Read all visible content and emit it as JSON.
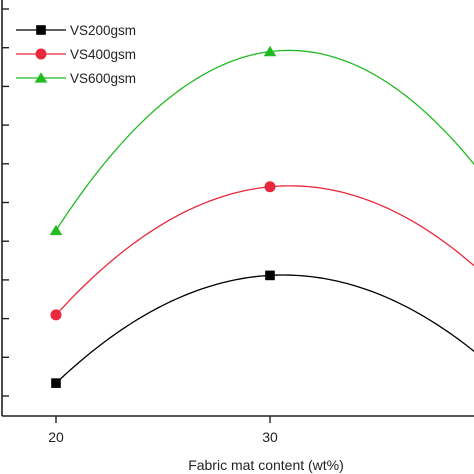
{
  "chart_data": {
    "type": "line",
    "title": "",
    "xlabel": "Fabric mat content (wt%)",
    "ylabel": "",
    "x_ticks": [
      20,
      30
    ],
    "xlim": [
      15,
      40
    ],
    "ylim": [
      0,
      1
    ],
    "grid": false,
    "legend_position": "top-left",
    "series": [
      {
        "name": "VS200gsm",
        "color": "#000000",
        "marker": "square",
        "x": [
          20,
          30,
          40
        ],
        "y": [
          0.079,
          0.338,
          0.136
        ]
      },
      {
        "name": "VS400gsm",
        "color": "#e8283c",
        "marker": "circle",
        "x": [
          20,
          30,
          40
        ],
        "y": [
          0.243,
          0.551,
          0.34
        ]
      },
      {
        "name": "VS600gsm",
        "color": "#22bb22",
        "marker": "triangle",
        "x": [
          20,
          30,
          40
        ],
        "y": [
          0.446,
          0.876,
          0.575
        ]
      }
    ]
  }
}
